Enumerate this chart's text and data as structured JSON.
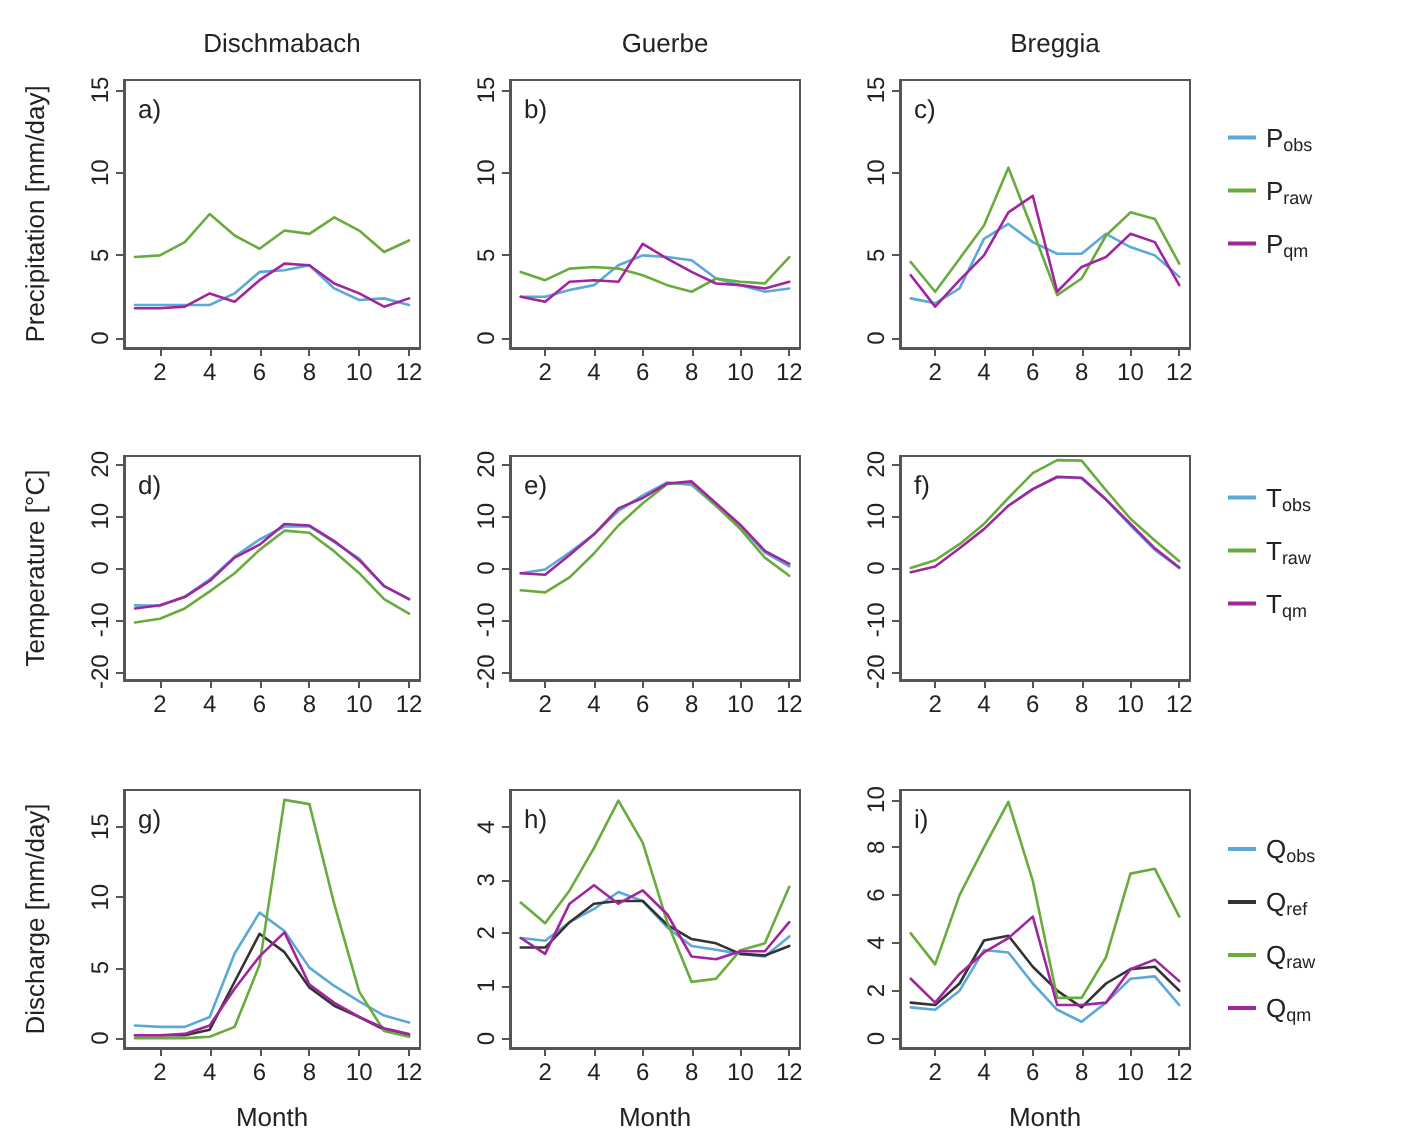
{
  "chart_data": [
    {
      "type": "line",
      "title": "Dischmabach",
      "ylabel": "Precipitation [mm/day]",
      "annotations": [
        "a)"
      ],
      "x": [
        1,
        2,
        3,
        4,
        5,
        6,
        7,
        8,
        9,
        10,
        11,
        12
      ],
      "xlim": [
        0.56,
        12.44
      ],
      "xticks": [
        2,
        4,
        6,
        8,
        10,
        12
      ],
      "ylim": [
        -0.6,
        15.6
      ],
      "yticks": [
        0,
        5,
        10,
        15
      ],
      "grid": false,
      "marker": "none",
      "line_style": "solid",
      "series": [
        {
          "color": "#5aa9d6",
          "values": [
            2.0,
            2.0,
            2.0,
            2.0,
            2.7,
            4.0,
            4.1,
            4.4,
            3.0,
            2.3,
            2.4,
            2.0
          ]
        },
        {
          "color": "#6aab3e",
          "values": [
            4.9,
            5.0,
            5.8,
            7.5,
            6.2,
            5.4,
            6.5,
            6.3,
            7.3,
            6.5,
            5.2,
            5.9
          ]
        },
        {
          "color": "#a0259e",
          "values": [
            1.8,
            1.8,
            1.9,
            2.7,
            2.2,
            3.5,
            4.5,
            4.4,
            3.3,
            2.7,
            1.9,
            2.4
          ]
        }
      ]
    },
    {
      "type": "line",
      "title": "Guerbe",
      "annotations": [
        "b)"
      ],
      "x": [
        1,
        2,
        3,
        4,
        5,
        6,
        7,
        8,
        9,
        10,
        11,
        12
      ],
      "xlim": [
        0.56,
        12.44
      ],
      "xticks": [
        2,
        4,
        6,
        8,
        10,
        12
      ],
      "ylim": [
        -0.6,
        15.6
      ],
      "yticks": [
        0,
        5,
        10,
        15
      ],
      "grid": false,
      "marker": "none",
      "line_style": "solid",
      "series": [
        {
          "color": "#5aa9d6",
          "values": [
            2.5,
            2.5,
            2.9,
            3.2,
            4.4,
            5.0,
            4.9,
            4.7,
            3.6,
            3.2,
            2.8,
            3.0
          ]
        },
        {
          "color": "#6aab3e",
          "values": [
            4.0,
            3.5,
            4.2,
            4.3,
            4.2,
            3.8,
            3.2,
            2.8,
            3.6,
            3.4,
            3.3,
            4.9
          ]
        },
        {
          "color": "#a0259e",
          "values": [
            2.5,
            2.2,
            3.4,
            3.5,
            3.4,
            5.7,
            4.8,
            4.0,
            3.3,
            3.2,
            3.0,
            3.4
          ]
        }
      ]
    },
    {
      "type": "line",
      "title": "Breggia",
      "annotations": [
        "c)"
      ],
      "x": [
        1,
        2,
        3,
        4,
        5,
        6,
        7,
        8,
        9,
        10,
        11,
        12
      ],
      "xlim": [
        0.56,
        12.44
      ],
      "xticks": [
        2,
        4,
        6,
        8,
        10,
        12
      ],
      "ylim": [
        -0.6,
        15.6
      ],
      "yticks": [
        0,
        5,
        10,
        15
      ],
      "grid": false,
      "marker": "none",
      "line_style": "solid",
      "legend": "right",
      "series": [
        {
          "name": "P$_{obs}$",
          "color": "#5aa9d6",
          "values": [
            2.4,
            2.1,
            3.0,
            6.0,
            6.9,
            5.8,
            5.1,
            5.1,
            6.3,
            5.5,
            5.0,
            3.7
          ]
        },
        {
          "name": "P$_{raw}$",
          "color": "#6aab3e",
          "values": [
            4.6,
            2.8,
            4.8,
            6.8,
            10.3,
            6.5,
            2.6,
            3.6,
            6.2,
            7.6,
            7.2,
            4.5
          ]
        },
        {
          "name": "P$_{qm}$",
          "color": "#a0259e",
          "values": [
            3.8,
            1.9,
            3.5,
            5.0,
            7.6,
            8.6,
            2.8,
            4.3,
            4.9,
            6.3,
            5.8,
            3.2
          ]
        }
      ]
    },
    {
      "type": "line",
      "ylabel": "Temperature [°C]",
      "annotations": [
        "d)"
      ],
      "x": [
        1,
        2,
        3,
        4,
        5,
        6,
        7,
        8,
        9,
        10,
        11,
        12
      ],
      "xlim": [
        0.56,
        12.44
      ],
      "xticks": [
        2,
        4,
        6,
        8,
        10,
        12
      ],
      "ylim": [
        -21.6,
        21.6
      ],
      "yticks": [
        -20,
        -10,
        0,
        10,
        20
      ],
      "grid": false,
      "marker": "none",
      "line_style": "solid",
      "series": [
        {
          "color": "#5aa9d6",
          "values": [
            -7.2,
            -7.3,
            -5.5,
            -2.2,
            2.2,
            5.5,
            8.0,
            8.0,
            5.0,
            1.8,
            -3.5,
            -6.0
          ]
        },
        {
          "color": "#6aab3e",
          "values": [
            -10.5,
            -9.8,
            -7.8,
            -4.5,
            -1.0,
            3.5,
            7.2,
            6.8,
            3.2,
            -1.0,
            -6.0,
            -8.8
          ]
        },
        {
          "color": "#a0259e",
          "values": [
            -7.8,
            -7.2,
            -5.6,
            -2.5,
            2.0,
            4.5,
            8.5,
            8.2,
            5.2,
            1.5,
            -3.5,
            -6.0
          ]
        }
      ]
    },
    {
      "type": "line",
      "annotations": [
        "e)"
      ],
      "x": [
        1,
        2,
        3,
        4,
        5,
        6,
        7,
        8,
        9,
        10,
        11,
        12
      ],
      "xlim": [
        0.56,
        12.44
      ],
      "xticks": [
        2,
        4,
        6,
        8,
        10,
        12
      ],
      "ylim": [
        -21.6,
        21.6
      ],
      "yticks": [
        -20,
        -10,
        0,
        10,
        20
      ],
      "grid": false,
      "marker": "none",
      "line_style": "solid",
      "series": [
        {
          "color": "#5aa9d6",
          "values": [
            -1.0,
            -0.3,
            3.0,
            6.5,
            11.0,
            14.0,
            16.5,
            16.0,
            12.0,
            8.0,
            3.0,
            0.3
          ]
        },
        {
          "color": "#6aab3e",
          "values": [
            -4.3,
            -4.7,
            -1.8,
            2.8,
            8.2,
            12.5,
            16.2,
            16.5,
            12.0,
            7.5,
            2.0,
            -1.5
          ]
        },
        {
          "color": "#a0259e",
          "values": [
            -1.0,
            -1.3,
            2.5,
            6.5,
            11.5,
            13.5,
            16.3,
            16.7,
            12.5,
            8.3,
            3.3,
            0.8
          ]
        }
      ]
    },
    {
      "type": "line",
      "annotations": [
        "f)"
      ],
      "x": [
        1,
        2,
        3,
        4,
        5,
        6,
        7,
        8,
        9,
        10,
        11,
        12
      ],
      "xlim": [
        0.56,
        12.44
      ],
      "xticks": [
        2,
        4,
        6,
        8,
        10,
        12
      ],
      "ylim": [
        -21.6,
        21.6
      ],
      "yticks": [
        -20,
        -10,
        0,
        10,
        20
      ],
      "grid": false,
      "marker": "none",
      "line_style": "solid",
      "legend": "right",
      "series": [
        {
          "name": "T$_{obs}$",
          "color": "#5aa9d6",
          "values": [
            null,
            null,
            null,
            null,
            12.0,
            15.2,
            17.5,
            17.3,
            13.2,
            8.2,
            3.5,
            0.0
          ]
        },
        {
          "name": "T$_{raw}$",
          "color": "#6aab3e",
          "values": [
            0.0,
            1.5,
            4.6,
            8.5,
            13.5,
            18.3,
            20.8,
            20.7,
            15.0,
            9.5,
            5.3,
            1.3
          ]
        },
        {
          "name": "T$_{qm}$",
          "color": "#a0259e",
          "values": [
            -0.8,
            0.3,
            3.8,
            7.5,
            12.0,
            15.2,
            17.6,
            17.4,
            13.2,
            8.5,
            3.8,
            0.1
          ]
        }
      ]
    },
    {
      "type": "line",
      "ylabel": "Discharge [mm/day]",
      "xlabel": "Month",
      "annotations": [
        "g)"
      ],
      "x": [
        1,
        2,
        3,
        4,
        5,
        6,
        7,
        8,
        9,
        10,
        11,
        12
      ],
      "xlim": [
        0.56,
        12.44
      ],
      "xticks": [
        2,
        4,
        6,
        8,
        10,
        12
      ],
      "ylim": [
        -0.7,
        17.6
      ],
      "yticks": [
        0,
        5,
        10,
        15
      ],
      "grid": false,
      "marker": "none",
      "line_style": "solid",
      "series": [
        {
          "color": "#5aa9d6",
          "values": [
            0.9,
            0.8,
            0.8,
            1.5,
            6.0,
            8.9,
            7.6,
            5.0,
            3.7,
            2.6,
            1.6,
            1.1
          ]
        },
        {
          "color": "#333333",
          "values": [
            0.2,
            0.2,
            0.2,
            0.6,
            4.0,
            7.4,
            6.1,
            3.6,
            2.3,
            1.5,
            0.6,
            0.2
          ]
        },
        {
          "color": "#6aab3e",
          "values": [
            0.0,
            0.0,
            0.0,
            0.1,
            0.8,
            5.2,
            16.9,
            16.6,
            9.5,
            3.3,
            0.5,
            0.1
          ]
        },
        {
          "color": "#a0259e",
          "values": [
            0.2,
            0.2,
            0.3,
            0.9,
            3.5,
            5.8,
            7.5,
            3.8,
            2.5,
            1.5,
            0.7,
            0.3
          ]
        }
      ]
    },
    {
      "type": "line",
      "xlabel": "Month",
      "annotations": [
        "h)"
      ],
      "x": [
        1,
        2,
        3,
        4,
        5,
        6,
        7,
        8,
        9,
        10,
        11,
        12
      ],
      "xlim": [
        0.56,
        12.44
      ],
      "xticks": [
        2,
        4,
        6,
        8,
        10,
        12
      ],
      "ylim": [
        -0.18,
        4.7
      ],
      "yticks": [
        0,
        1,
        2,
        3,
        4
      ],
      "grid": false,
      "marker": "none",
      "line_style": "solid",
      "series": [
        {
          "color": "#5aa9d6",
          "values": [
            1.9,
            1.85,
            2.2,
            2.45,
            2.77,
            2.6,
            2.1,
            1.75,
            1.68,
            1.6,
            1.55,
            1.93
          ]
        },
        {
          "color": "#333333",
          "values": [
            1.72,
            1.72,
            2.2,
            2.55,
            2.6,
            2.6,
            2.15,
            1.88,
            1.8,
            1.6,
            1.57,
            1.75
          ]
        },
        {
          "color": "#6aab3e",
          "values": [
            2.57,
            2.18,
            2.8,
            3.6,
            4.5,
            3.7,
            2.2,
            1.07,
            1.13,
            1.67,
            1.8,
            2.87
          ]
        },
        {
          "color": "#a0259e",
          "values": [
            1.9,
            1.6,
            2.55,
            2.9,
            2.55,
            2.8,
            2.35,
            1.55,
            1.5,
            1.65,
            1.65,
            2.2
          ]
        }
      ]
    },
    {
      "type": "line",
      "xlabel": "Month",
      "annotations": [
        "i)"
      ],
      "x": [
        1,
        2,
        3,
        4,
        5,
        6,
        7,
        8,
        9,
        10,
        11,
        12
      ],
      "xlim": [
        0.56,
        12.44
      ],
      "xticks": [
        2,
        4,
        6,
        8,
        10,
        12
      ],
      "ylim": [
        -0.4,
        10.4
      ],
      "yticks": [
        0,
        2,
        4,
        6,
        8,
        10
      ],
      "grid": false,
      "marker": "none",
      "line_style": "solid",
      "legend": "right",
      "series": [
        {
          "name": "Q$_{obs}$",
          "color": "#5aa9d6",
          "values": [
            1.3,
            1.2,
            2.0,
            3.7,
            3.6,
            2.3,
            1.2,
            0.7,
            1.5,
            2.5,
            2.6,
            1.4
          ]
        },
        {
          "name": "Q$_{ref}$",
          "color": "#333333",
          "values": [
            1.5,
            1.4,
            2.3,
            4.1,
            4.3,
            3.0,
            2.0,
            1.3,
            2.3,
            2.9,
            3.0,
            2.0
          ]
        },
        {
          "name": "Q$_{raw}$",
          "color": "#6aab3e",
          "values": [
            4.4,
            3.1,
            6.0,
            8.0,
            9.9,
            6.6,
            1.7,
            1.7,
            3.4,
            6.9,
            7.1,
            5.1
          ]
        },
        {
          "name": "Q$_{qm}$",
          "color": "#a0259e",
          "values": [
            2.5,
            1.5,
            2.7,
            3.6,
            4.2,
            5.1,
            1.4,
            1.4,
            1.5,
            2.9,
            3.3,
            2.4
          ]
        }
      ]
    }
  ]
}
